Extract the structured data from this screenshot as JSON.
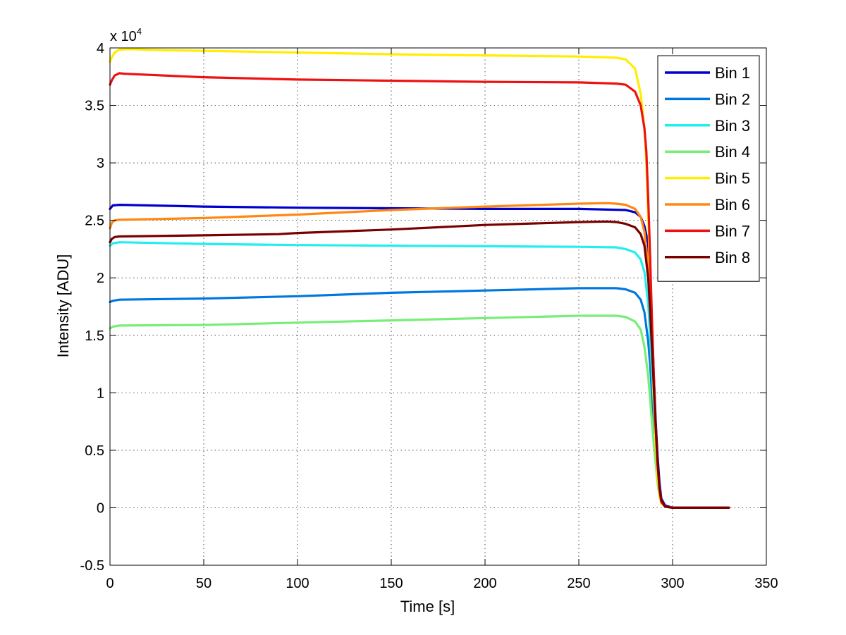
{
  "chart_data": {
    "type": "line",
    "title": "",
    "xlabel": "Time [s]",
    "ylabel": "Intensity [ADU]",
    "y_multiplier_label": "x 10",
    "y_multiplier_exponent": "4",
    "xlim": [
      0,
      350
    ],
    "ylim": [
      -0.5,
      4
    ],
    "xticks": [
      0,
      50,
      100,
      150,
      200,
      250,
      300,
      350
    ],
    "yticks": [
      -0.5,
      0,
      0.5,
      1,
      1.5,
      2,
      2.5,
      3,
      3.5,
      4
    ],
    "xtick_labels": [
      "0",
      "50",
      "100",
      "150",
      "200",
      "250",
      "300",
      "350"
    ],
    "ytick_labels": [
      "-0.5",
      "0",
      "0.5",
      "1",
      "1.5",
      "2",
      "2.5",
      "3",
      "3.5",
      "4"
    ],
    "grid": true,
    "legend_position": "top-right",
    "series": [
      {
        "name": "Bin 1",
        "color": "#0000cc",
        "x": [
          0,
          1.5,
          5,
          50,
          100,
          150,
          200,
          250,
          275,
          280,
          283,
          285,
          287,
          288,
          289,
          290,
          291,
          292,
          293,
          294,
          296,
          300,
          330
        ],
        "y": [
          2.6,
          2.63,
          2.635,
          2.62,
          2.61,
          2.605,
          2.6,
          2.6,
          2.59,
          2.57,
          2.53,
          2.45,
          2.3,
          2.0,
          1.6,
          1.15,
          0.75,
          0.45,
          0.22,
          0.08,
          0.02,
          0.0,
          0.0
        ]
      },
      {
        "name": "Bin 2",
        "color": "#0077dd",
        "x": [
          0,
          1.5,
          5,
          50,
          100,
          150,
          200,
          250,
          270,
          275,
          280,
          283,
          285,
          287,
          288,
          289,
          290,
          291,
          292,
          293,
          294,
          296,
          300,
          330
        ],
        "y": [
          1.79,
          1.8,
          1.81,
          1.82,
          1.84,
          1.87,
          1.89,
          1.91,
          1.91,
          1.9,
          1.87,
          1.81,
          1.7,
          1.45,
          1.25,
          1.0,
          0.75,
          0.52,
          0.32,
          0.16,
          0.06,
          0.01,
          0.0,
          0.0
        ]
      },
      {
        "name": "Bin 3",
        "color": "#22eeee",
        "x": [
          0,
          1.5,
          5,
          50,
          100,
          150,
          200,
          250,
          270,
          275,
          280,
          283,
          285,
          287,
          288,
          289,
          290,
          291,
          292,
          293,
          294,
          296,
          300,
          330
        ],
        "y": [
          2.28,
          2.3,
          2.31,
          2.295,
          2.285,
          2.28,
          2.275,
          2.27,
          2.265,
          2.25,
          2.22,
          2.16,
          2.05,
          1.78,
          1.5,
          1.2,
          0.9,
          0.6,
          0.35,
          0.18,
          0.07,
          0.01,
          0.0,
          0.0
        ]
      },
      {
        "name": "Bin 4",
        "color": "#77ee77",
        "x": [
          0,
          1.5,
          5,
          50,
          100,
          150,
          200,
          250,
          270,
          275,
          280,
          283,
          285,
          287,
          288,
          289,
          290,
          291,
          292,
          293,
          294,
          296,
          300,
          330
        ],
        "y": [
          1.56,
          1.575,
          1.585,
          1.59,
          1.61,
          1.63,
          1.65,
          1.67,
          1.67,
          1.66,
          1.62,
          1.55,
          1.4,
          1.15,
          0.95,
          0.75,
          0.55,
          0.38,
          0.22,
          0.1,
          0.04,
          0.01,
          0.0,
          0.0
        ]
      },
      {
        "name": "Bin 5",
        "color": "#ffee00",
        "x": [
          0,
          1,
          2.5,
          5,
          10,
          30,
          50,
          100,
          150,
          200,
          250,
          270,
          275,
          280,
          283,
          285,
          286,
          287,
          288,
          289,
          290,
          291,
          292,
          293,
          294,
          296,
          300,
          330
        ],
        "y": [
          3.88,
          3.92,
          3.96,
          3.985,
          3.99,
          3.98,
          3.975,
          3.96,
          3.945,
          3.935,
          3.925,
          3.915,
          3.9,
          3.82,
          3.6,
          3.3,
          3.0,
          2.55,
          2.0,
          1.45,
          0.95,
          0.55,
          0.28,
          0.12,
          0.04,
          0.01,
          0.0,
          0.0
        ]
      },
      {
        "name": "Bin 6",
        "color": "#ff8811",
        "x": [
          0,
          1,
          2.5,
          5,
          50,
          100,
          150,
          200,
          250,
          265,
          270,
          275,
          280,
          283,
          285,
          287,
          288,
          289,
          290,
          291,
          292,
          293,
          294,
          296,
          300,
          330
        ],
        "y": [
          2.43,
          2.48,
          2.5,
          2.505,
          2.52,
          2.55,
          2.59,
          2.62,
          2.645,
          2.65,
          2.645,
          2.635,
          2.6,
          2.53,
          2.4,
          2.1,
          1.8,
          1.45,
          1.05,
          0.68,
          0.38,
          0.17,
          0.06,
          0.01,
          0.0,
          0.0
        ]
      },
      {
        "name": "Bin 7",
        "color": "#ee1111",
        "x": [
          0,
          1,
          2.5,
          5,
          8,
          50,
          100,
          150,
          200,
          250,
          270,
          275,
          280,
          283,
          285,
          286,
          287,
          288,
          289,
          290,
          291,
          292,
          293,
          294,
          296,
          300,
          330
        ],
        "y": [
          3.68,
          3.72,
          3.76,
          3.78,
          3.775,
          3.745,
          3.725,
          3.715,
          3.705,
          3.7,
          3.69,
          3.68,
          3.62,
          3.5,
          3.3,
          3.1,
          2.7,
          2.2,
          1.65,
          1.15,
          0.7,
          0.38,
          0.16,
          0.05,
          0.01,
          0.0,
          0.0
        ]
      },
      {
        "name": "Bin 8",
        "color": "#7a0000",
        "x": [
          0,
          1,
          2.5,
          5,
          50,
          90,
          100,
          150,
          200,
          250,
          265,
          270,
          275,
          280,
          283,
          285,
          287,
          288,
          289,
          290,
          291,
          292,
          293,
          294,
          296,
          300,
          330
        ],
        "y": [
          2.31,
          2.34,
          2.355,
          2.36,
          2.37,
          2.38,
          2.39,
          2.42,
          2.46,
          2.485,
          2.49,
          2.485,
          2.47,
          2.44,
          2.38,
          2.28,
          2.0,
          1.72,
          1.4,
          1.05,
          0.7,
          0.4,
          0.18,
          0.07,
          0.01,
          0.0,
          0.0
        ]
      }
    ]
  }
}
